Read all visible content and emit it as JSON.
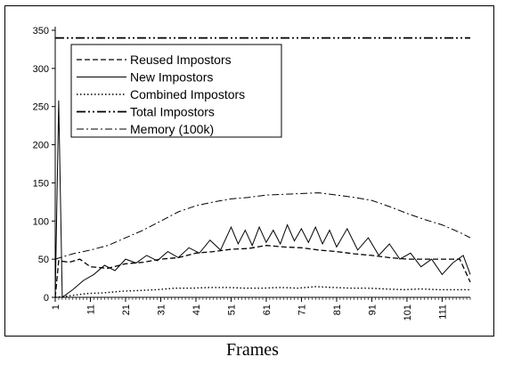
{
  "chart_data": {
    "type": "line",
    "title": "",
    "xlabel": "Frames",
    "ylabel": "",
    "ylim": [
      0,
      350
    ],
    "xlim": [
      1,
      119
    ],
    "y_ticks": [
      0,
      50,
      100,
      150,
      200,
      250,
      300,
      350
    ],
    "x_ticks": [
      1,
      11,
      21,
      31,
      41,
      51,
      61,
      71,
      81,
      91,
      101,
      111
    ],
    "grid": false,
    "legend_position": "top-left",
    "series": [
      {
        "name": "Reused Impostors",
        "style": "dashed",
        "points": [
          [
            1,
            0
          ],
          [
            2,
            48
          ],
          [
            5,
            46
          ],
          [
            8,
            50
          ],
          [
            11,
            40
          ],
          [
            16,
            38
          ],
          [
            21,
            44
          ],
          [
            26,
            46
          ],
          [
            31,
            50
          ],
          [
            36,
            52
          ],
          [
            41,
            58
          ],
          [
            46,
            60
          ],
          [
            51,
            63
          ],
          [
            56,
            64
          ],
          [
            61,
            68
          ],
          [
            66,
            66
          ],
          [
            71,
            65
          ],
          [
            76,
            62
          ],
          [
            81,
            60
          ],
          [
            86,
            57
          ],
          [
            91,
            55
          ],
          [
            96,
            52
          ],
          [
            101,
            50
          ],
          [
            106,
            50
          ],
          [
            111,
            50
          ],
          [
            116,
            50
          ],
          [
            119,
            20
          ]
        ]
      },
      {
        "name": "New Impostors",
        "style": "solid",
        "points": [
          [
            1,
            0
          ],
          [
            2,
            258
          ],
          [
            3,
            0
          ],
          [
            6,
            10
          ],
          [
            9,
            22
          ],
          [
            12,
            30
          ],
          [
            15,
            42
          ],
          [
            18,
            35
          ],
          [
            21,
            50
          ],
          [
            24,
            45
          ],
          [
            27,
            55
          ],
          [
            30,
            48
          ],
          [
            33,
            60
          ],
          [
            36,
            52
          ],
          [
            39,
            65
          ],
          [
            42,
            58
          ],
          [
            45,
            75
          ],
          [
            48,
            62
          ],
          [
            51,
            92
          ],
          [
            53,
            70
          ],
          [
            55,
            88
          ],
          [
            57,
            68
          ],
          [
            59,
            92
          ],
          [
            61,
            72
          ],
          [
            63,
            88
          ],
          [
            65,
            70
          ],
          [
            67,
            95
          ],
          [
            69,
            74
          ],
          [
            71,
            90
          ],
          [
            73,
            72
          ],
          [
            75,
            92
          ],
          [
            77,
            70
          ],
          [
            79,
            88
          ],
          [
            81,
            66
          ],
          [
            84,
            90
          ],
          [
            87,
            62
          ],
          [
            90,
            78
          ],
          [
            93,
            55
          ],
          [
            96,
            70
          ],
          [
            99,
            50
          ],
          [
            102,
            58
          ],
          [
            105,
            40
          ],
          [
            108,
            50
          ],
          [
            111,
            30
          ],
          [
            114,
            45
          ],
          [
            117,
            55
          ],
          [
            119,
            30
          ]
        ]
      },
      {
        "name": "Combined Impostors",
        "style": "dotted",
        "points": [
          [
            1,
            0
          ],
          [
            5,
            2
          ],
          [
            10,
            5
          ],
          [
            15,
            6
          ],
          [
            20,
            8
          ],
          [
            25,
            9
          ],
          [
            30,
            10
          ],
          [
            35,
            12
          ],
          [
            40,
            12
          ],
          [
            45,
            13
          ],
          [
            50,
            13
          ],
          [
            55,
            12
          ],
          [
            60,
            12
          ],
          [
            65,
            13
          ],
          [
            70,
            12
          ],
          [
            75,
            14
          ],
          [
            80,
            13
          ],
          [
            85,
            12
          ],
          [
            90,
            12
          ],
          [
            95,
            11
          ],
          [
            100,
            10
          ],
          [
            105,
            11
          ],
          [
            110,
            10
          ],
          [
            115,
            10
          ],
          [
            119,
            10
          ]
        ]
      },
      {
        "name": "Total Impostors",
        "style": "dashdotdot",
        "points": [
          [
            1,
            340
          ],
          [
            119,
            340
          ]
        ]
      },
      {
        "name": "Memory (100k)",
        "style": "dashdot",
        "points": [
          [
            1,
            50
          ],
          [
            6,
            57
          ],
          [
            11,
            62
          ],
          [
            16,
            68
          ],
          [
            21,
            78
          ],
          [
            26,
            88
          ],
          [
            31,
            100
          ],
          [
            36,
            112
          ],
          [
            41,
            120
          ],
          [
            46,
            125
          ],
          [
            51,
            129
          ],
          [
            56,
            131
          ],
          [
            61,
            134
          ],
          [
            66,
            135
          ],
          [
            71,
            136
          ],
          [
            76,
            137
          ],
          [
            81,
            134
          ],
          [
            86,
            131
          ],
          [
            91,
            127
          ],
          [
            96,
            119
          ],
          [
            101,
            110
          ],
          [
            106,
            102
          ],
          [
            111,
            95
          ],
          [
            116,
            85
          ],
          [
            119,
            78
          ]
        ]
      }
    ]
  },
  "colors": {
    "line": "#000000",
    "background": "#ffffff"
  }
}
